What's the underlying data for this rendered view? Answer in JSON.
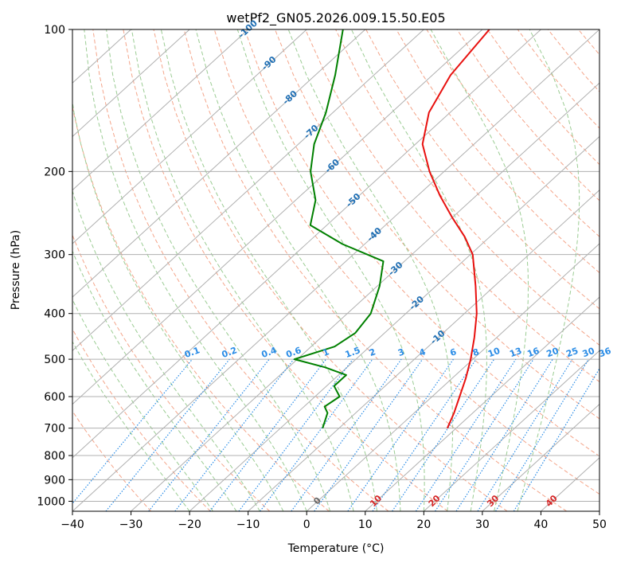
{
  "chart_data": {
    "type": "line",
    "title": "wetPf2_GN05.2026.009.15.50.E05",
    "xlabel": "Temperature (°C)",
    "ylabel": "Pressure (hPa)",
    "xlim": [
      -40,
      50
    ],
    "ylim": [
      1050,
      100
    ],
    "y_scale": "log",
    "grid": true,
    "x_ticks": [
      "−40",
      "−30",
      "−20",
      "−10",
      "0",
      "10",
      "20",
      "30",
      "40",
      "50"
    ],
    "y_ticks": [
      "100",
      "200",
      "300",
      "400",
      "500",
      "600",
      "700",
      "800",
      "900",
      "1000"
    ],
    "series": [
      {
        "color": "#e8110f",
        "points": [
          {
            "p": 700,
            "t": 8.5
          },
          {
            "p": 650,
            "t": 6.8
          },
          {
            "p": 600,
            "t": 4.7
          },
          {
            "p": 550,
            "t": 2.4
          },
          {
            "p": 500,
            "t": -0.4
          },
          {
            "p": 450,
            "t": -3.8
          },
          {
            "p": 400,
            "t": -7.9
          },
          {
            "p": 350,
            "t": -13.2
          },
          {
            "p": 300,
            "t": -19.6
          },
          {
            "p": 275,
            "t": -24.3
          },
          {
            "p": 250,
            "t": -30.1
          },
          {
            "p": 225,
            "t": -36.2
          },
          {
            "p": 200,
            "t": -42.5
          },
          {
            "p": 175,
            "t": -48.8
          },
          {
            "p": 150,
            "t": -53.6
          },
          {
            "p": 125,
            "t": -56.9
          },
          {
            "p": 100,
            "t": -58.8
          }
        ]
      },
      {
        "color": "#008000",
        "points": [
          {
            "p": 700,
            "t": -12.8
          },
          {
            "p": 650,
            "t": -14.8
          },
          {
            "p": 630,
            "t": -16.5
          },
          {
            "p": 600,
            "t": -15.8
          },
          {
            "p": 570,
            "t": -18.7
          },
          {
            "p": 540,
            "t": -18.7
          },
          {
            "p": 520,
            "t": -23.8
          },
          {
            "p": 500,
            "t": -30.5
          },
          {
            "p": 470,
            "t": -26.0
          },
          {
            "p": 440,
            "t": -25.0
          },
          {
            "p": 400,
            "t": -26.0
          },
          {
            "p": 350,
            "t": -29.6
          },
          {
            "p": 310,
            "t": -33.6
          },
          {
            "p": 285,
            "t": -43.8
          },
          {
            "p": 260,
            "t": -52.8
          },
          {
            "p": 230,
            "t": -56.6
          },
          {
            "p": 200,
            "t": -62.8
          },
          {
            "p": 175,
            "t": -67.3
          },
          {
            "p": 150,
            "t": -71.2
          },
          {
            "p": 125,
            "t": -76.6
          },
          {
            "p": 100,
            "t": -83.8
          }
        ]
      }
    ],
    "isotherm_labels": [
      "-100",
      "-90",
      "-80",
      "-70",
      "-60",
      "-50",
      "-40",
      "-30",
      "-20",
      "-10"
    ],
    "mixing_ratio_labels": [
      "0.1",
      "0.2",
      "0.4",
      "0.6",
      "1",
      "1.5",
      "2",
      "3",
      "4",
      "6",
      "8",
      "10",
      "13",
      "16",
      "20",
      "25",
      "30",
      "36"
    ],
    "dry_adiabat_labels": [
      "0",
      "10",
      "20",
      "30",
      "40"
    ],
    "colors": {
      "temperature": "#e8110f",
      "dewpoint": "#008000",
      "isotherm_label": "#1f6fb4",
      "mixing_ratio": "#2a8ce6",
      "dry_adiabat": "#f4a58a",
      "moist_adiabat": "#9bcc93",
      "isobar_grid": "#b0b0b0",
      "adiabat_label": "#d62728"
    }
  }
}
